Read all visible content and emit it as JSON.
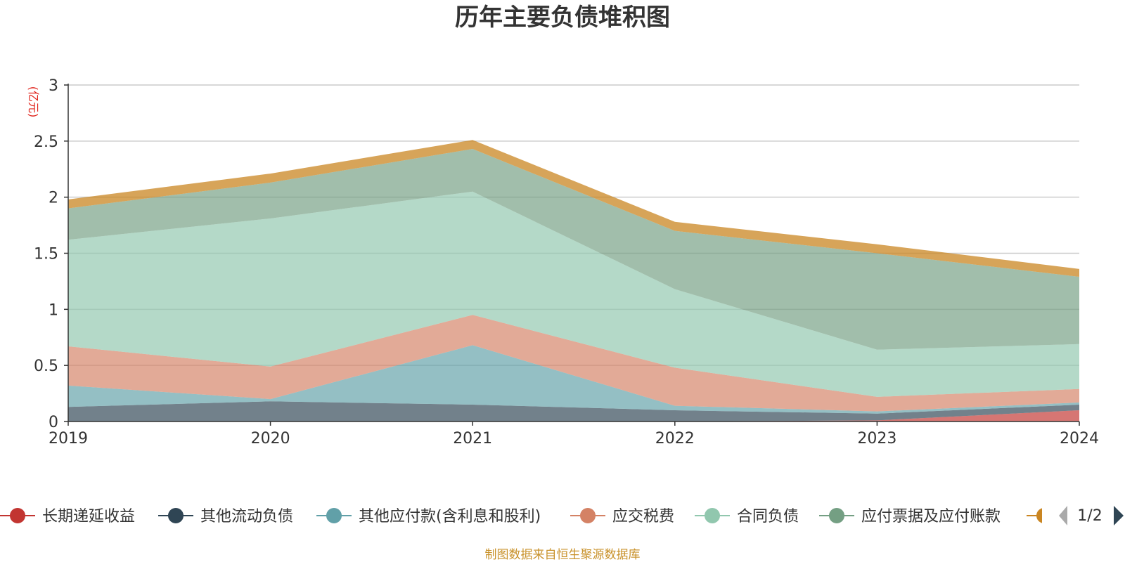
{
  "chart_data": {
    "type": "area",
    "stacked": true,
    "title": "历年主要负债堆积图",
    "unit_label": "(亿元)",
    "x": [
      "2019",
      "2020",
      "2021",
      "2022",
      "2023",
      "2024"
    ],
    "ylim": [
      0,
      3
    ],
    "yticks": [
      "0",
      "0.5",
      "1",
      "1.5",
      "2",
      "2.5",
      "3"
    ],
    "grid": true,
    "series": [
      {
        "name": "长期递延收益",
        "color": "#c23531",
        "values": [
          0,
          0,
          0,
          0,
          0.01,
          0.1
        ]
      },
      {
        "name": "其他流动负债",
        "color": "#2f4554",
        "values": [
          0.13,
          0.18,
          0.15,
          0.1,
          0.06,
          0.05
        ]
      },
      {
        "name": "其他应付款(含利息和股利)",
        "color": "#61a0a8",
        "values": [
          0.19,
          0.02,
          0.53,
          0.04,
          0.02,
          0.02
        ]
      },
      {
        "name": "应交税费",
        "color": "#d48265",
        "values": [
          0.35,
          0.29,
          0.27,
          0.34,
          0.13,
          0.12
        ]
      },
      {
        "name": "合同负债",
        "color": "#91c7ae",
        "values": [
          0.95,
          1.32,
          1.1,
          0.7,
          0.42,
          0.4
        ]
      },
      {
        "name": "应付票据及应付账款",
        "color": "#749f83",
        "values": [
          0.28,
          0.32,
          0.38,
          0.52,
          0.86,
          0.6
        ]
      },
      {
        "name": "",
        "color": "#ca8622",
        "values": [
          0.08,
          0.08,
          0.08,
          0.08,
          0.08,
          0.07
        ]
      }
    ],
    "legend_position": "bottom",
    "legend_page": "1/2"
  },
  "source_note": "制图数据来自恒生聚源数据库"
}
